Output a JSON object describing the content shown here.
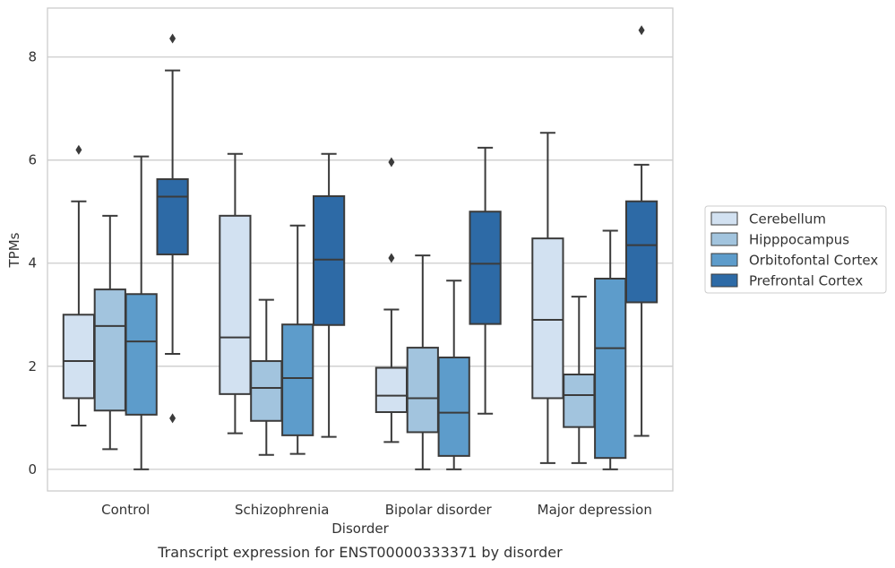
{
  "chart_data": {
    "type": "box",
    "caption": "Transcript expression for ENST00000333371 by disorder",
    "xlabel": "Disorder",
    "ylabel": "TPMs",
    "ylim": [
      -0.42,
      8.95
    ],
    "yticks": [
      0,
      2,
      4,
      6,
      8
    ],
    "grid": true,
    "legend_position": "right",
    "categories": [
      "Control",
      "Schizophrenia",
      "Bipolar disorder",
      "Major depression"
    ],
    "series": [
      {
        "name": "Cerebellum",
        "color": "#d2e1f1",
        "boxes": [
          {
            "whisker_low": 0.85,
            "q1": 1.38,
            "median": 2.1,
            "q3": 3.0,
            "whisker_high": 5.2,
            "outliers": [
              6.2
            ]
          },
          {
            "whisker_low": 0.7,
            "q1": 1.46,
            "median": 2.56,
            "q3": 4.92,
            "whisker_high": 6.12,
            "outliers": []
          },
          {
            "whisker_low": 0.53,
            "q1": 1.11,
            "median": 1.43,
            "q3": 1.97,
            "whisker_high": 3.1,
            "outliers": [
              4.1,
              5.96
            ]
          },
          {
            "whisker_low": 0.12,
            "q1": 1.38,
            "median": 2.9,
            "q3": 4.48,
            "whisker_high": 6.53,
            "outliers": []
          }
        ]
      },
      {
        "name": "Hipppocampus",
        "color": "#a2c4de",
        "boxes": [
          {
            "whisker_low": 0.39,
            "q1": 1.14,
            "median": 2.78,
            "q3": 3.49,
            "whisker_high": 4.92,
            "outliers": []
          },
          {
            "whisker_low": 0.28,
            "q1": 0.94,
            "median": 1.58,
            "q3": 2.1,
            "whisker_high": 3.29,
            "outliers": []
          },
          {
            "whisker_low": 0.0,
            "q1": 0.72,
            "median": 1.38,
            "q3": 2.36,
            "whisker_high": 4.15,
            "outliers": []
          },
          {
            "whisker_low": 0.12,
            "q1": 0.82,
            "median": 1.44,
            "q3": 1.84,
            "whisker_high": 3.35,
            "outliers": []
          }
        ]
      },
      {
        "name": "Orbitofontal Cortex",
        "color": "#5d9ccb",
        "boxes": [
          {
            "whisker_low": 0.0,
            "q1": 1.06,
            "median": 2.48,
            "q3": 3.4,
            "whisker_high": 6.07,
            "outliers": []
          },
          {
            "whisker_low": 0.3,
            "q1": 0.66,
            "median": 1.77,
            "q3": 2.81,
            "whisker_high": 4.73,
            "outliers": []
          },
          {
            "whisker_low": 0.0,
            "q1": 0.26,
            "median": 1.1,
            "q3": 2.17,
            "whisker_high": 3.66,
            "outliers": []
          },
          {
            "whisker_low": 0.0,
            "q1": 0.22,
            "median": 2.35,
            "q3": 3.7,
            "whisker_high": 4.63,
            "outliers": []
          }
        ]
      },
      {
        "name": "Prefrontal Cortex",
        "color": "#2d6aa6",
        "boxes": [
          {
            "whisker_low": 2.24,
            "q1": 4.17,
            "median": 5.29,
            "q3": 5.63,
            "whisker_high": 7.74,
            "outliers": [
              0.99,
              8.36
            ]
          },
          {
            "whisker_low": 0.63,
            "q1": 2.8,
            "median": 4.07,
            "q3": 5.3,
            "whisker_high": 6.12,
            "outliers": []
          },
          {
            "whisker_low": 1.08,
            "q1": 2.82,
            "median": 3.99,
            "q3": 5.0,
            "whisker_high": 6.24,
            "outliers": []
          },
          {
            "whisker_low": 0.65,
            "q1": 3.24,
            "median": 4.35,
            "q3": 5.2,
            "whisker_high": 5.91,
            "outliers": [
              8.52
            ]
          }
        ]
      }
    ]
  }
}
